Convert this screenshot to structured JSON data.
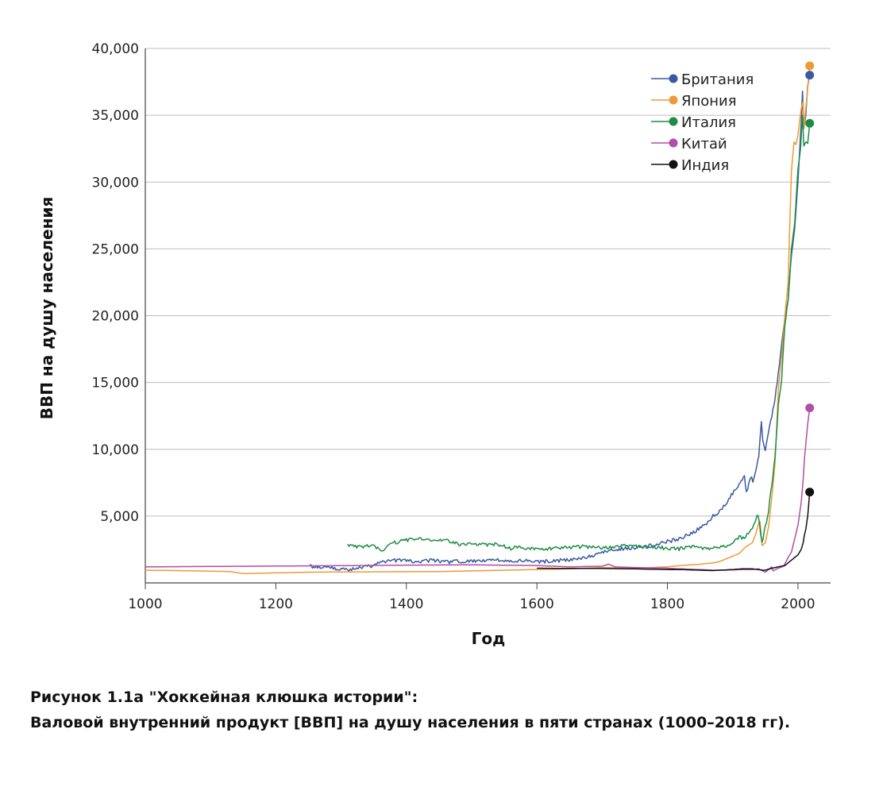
{
  "chart_data": {
    "type": "line",
    "xlabel": "Год",
    "ylabel": "ВВП на душу населения",
    "xlim": [
      1000,
      2050
    ],
    "ylim": [
      0,
      40000
    ],
    "x_ticks": [
      1000,
      1200,
      1400,
      1600,
      1800,
      2000
    ],
    "x_tick_labels": [
      "1000",
      "1200",
      "1400",
      "1600",
      "1800",
      "2000"
    ],
    "y_ticks": [
      5000,
      10000,
      15000,
      20000,
      25000,
      30000,
      35000,
      40000
    ],
    "y_tick_labels": [
      "5,000",
      "10,000",
      "15,000",
      "20,000",
      "25,000",
      "30,000",
      "35,000",
      "40,000"
    ],
    "grid": true,
    "legend_position": "top-right",
    "series": [
      {
        "name": "Британия",
        "color": "#3a5aa0",
        "endpoint": [
          2018,
          38000
        ],
        "points": [
          [
            1252,
            1250
          ],
          [
            1270,
            1200
          ],
          [
            1290,
            1100
          ],
          [
            1310,
            1000
          ],
          [
            1330,
            1100
          ],
          [
            1348,
            1300
          ],
          [
            1360,
            1500
          ],
          [
            1380,
            1700
          ],
          [
            1400,
            1650
          ],
          [
            1420,
            1600
          ],
          [
            1440,
            1700
          ],
          [
            1460,
            1550
          ],
          [
            1480,
            1600
          ],
          [
            1500,
            1600
          ],
          [
            1520,
            1700
          ],
          [
            1540,
            1750
          ],
          [
            1560,
            1600
          ],
          [
            1580,
            1650
          ],
          [
            1600,
            1550
          ],
          [
            1620,
            1650
          ],
          [
            1640,
            1700
          ],
          [
            1660,
            1800
          ],
          [
            1680,
            2000
          ],
          [
            1700,
            2250
          ],
          [
            1720,
            2500
          ],
          [
            1740,
            2600
          ],
          [
            1760,
            2700
          ],
          [
            1780,
            2850
          ],
          [
            1800,
            3100
          ],
          [
            1820,
            3300
          ],
          [
            1840,
            3800
          ],
          [
            1860,
            4400
          ],
          [
            1870,
            5000
          ],
          [
            1880,
            5400
          ],
          [
            1890,
            6000
          ],
          [
            1900,
            6700
          ],
          [
            1910,
            7300
          ],
          [
            1913,
            7700
          ],
          [
            1918,
            7900
          ],
          [
            1921,
            6800
          ],
          [
            1929,
            8000
          ],
          [
            1931,
            7600
          ],
          [
            1937,
            8700
          ],
          [
            1940,
            9500
          ],
          [
            1944,
            12200
          ],
          [
            1946,
            10600
          ],
          [
            1950,
            10000
          ],
          [
            1955,
            11300
          ],
          [
            1960,
            12500
          ],
          [
            1965,
            13900
          ],
          [
            1970,
            15700
          ],
          [
            1975,
            17800
          ],
          [
            1980,
            19700
          ],
          [
            1985,
            21200
          ],
          [
            1990,
            24500
          ],
          [
            1995,
            26500
          ],
          [
            2000,
            30000
          ],
          [
            2005,
            34400
          ],
          [
            2007,
            36800
          ],
          [
            2009,
            34000
          ],
          [
            2012,
            35000
          ],
          [
            2015,
            37200
          ],
          [
            2018,
            38000
          ]
        ]
      },
      {
        "name": "Япония",
        "color": "#ee9a35",
        "endpoint": [
          2018,
          38700
        ],
        "points": [
          [
            1000,
            950
          ],
          [
            1050,
            920
          ],
          [
            1100,
            880
          ],
          [
            1130,
            850
          ],
          [
            1150,
            700
          ],
          [
            1200,
            750
          ],
          [
            1250,
            800
          ],
          [
            1300,
            820
          ],
          [
            1350,
            830
          ],
          [
            1400,
            840
          ],
          [
            1450,
            850
          ],
          [
            1500,
            900
          ],
          [
            1550,
            950
          ],
          [
            1600,
            1000
          ],
          [
            1650,
            1050
          ],
          [
            1700,
            1150
          ],
          [
            1750,
            1100
          ],
          [
            1800,
            1200
          ],
          [
            1820,
            1300
          ],
          [
            1850,
            1400
          ],
          [
            1870,
            1500
          ],
          [
            1880,
            1600
          ],
          [
            1890,
            1800
          ],
          [
            1900,
            2000
          ],
          [
            1910,
            2200
          ],
          [
            1920,
            2700
          ],
          [
            1930,
            3000
          ],
          [
            1935,
            3600
          ],
          [
            1940,
            4500
          ],
          [
            1942,
            4600
          ],
          [
            1945,
            2800
          ],
          [
            1950,
            3000
          ],
          [
            1955,
            4200
          ],
          [
            1960,
            6400
          ],
          [
            1965,
            9000
          ],
          [
            1970,
            14500
          ],
          [
            1975,
            17000
          ],
          [
            1980,
            20000
          ],
          [
            1985,
            22500
          ],
          [
            1990,
            30800
          ],
          [
            1994,
            33000
          ],
          [
            1997,
            32800
          ],
          [
            2000,
            33500
          ],
          [
            2005,
            35500
          ],
          [
            2008,
            36000
          ],
          [
            2009,
            34000
          ],
          [
            2012,
            35500
          ],
          [
            2015,
            37000
          ],
          [
            2018,
            38700
          ]
        ]
      },
      {
        "name": "Италия",
        "color": "#1e8c45",
        "endpoint": [
          2018,
          34400
        ],
        "points": [
          [
            1310,
            2800
          ],
          [
            1330,
            2700
          ],
          [
            1348,
            2850
          ],
          [
            1360,
            2400
          ],
          [
            1380,
            3000
          ],
          [
            1400,
            3200
          ],
          [
            1420,
            3300
          ],
          [
            1440,
            3100
          ],
          [
            1460,
            3200
          ],
          [
            1480,
            2900
          ],
          [
            1500,
            3000
          ],
          [
            1520,
            2850
          ],
          [
            1540,
            2900
          ],
          [
            1560,
            2600
          ],
          [
            1580,
            2650
          ],
          [
            1600,
            2500
          ],
          [
            1620,
            2550
          ],
          [
            1640,
            2600
          ],
          [
            1660,
            2700
          ],
          [
            1680,
            2700
          ],
          [
            1700,
            2600
          ],
          [
            1720,
            2700
          ],
          [
            1740,
            2800
          ],
          [
            1760,
            2700
          ],
          [
            1780,
            2650
          ],
          [
            1800,
            2600
          ],
          [
            1820,
            2550
          ],
          [
            1840,
            2700
          ],
          [
            1860,
            2600
          ],
          [
            1880,
            2600
          ],
          [
            1900,
            3000
          ],
          [
            1910,
            3400
          ],
          [
            1920,
            3400
          ],
          [
            1930,
            4200
          ],
          [
            1939,
            5100
          ],
          [
            1943,
            3700
          ],
          [
            1945,
            3000
          ],
          [
            1950,
            4200
          ],
          [
            1955,
            5400
          ],
          [
            1960,
            7400
          ],
          [
            1965,
            9500
          ],
          [
            1970,
            13300
          ],
          [
            1975,
            15300
          ],
          [
            1980,
            19400
          ],
          [
            1985,
            21200
          ],
          [
            1990,
            25000
          ],
          [
            1995,
            26900
          ],
          [
            2000,
            30900
          ],
          [
            2004,
            32500
          ],
          [
            2007,
            35000
          ],
          [
            2009,
            32700
          ],
          [
            2012,
            33000
          ],
          [
            2015,
            32900
          ],
          [
            2018,
            34400
          ]
        ]
      },
      {
        "name": "Китай",
        "color": "#b04ea8",
        "endpoint": [
          2018,
          13100
        ],
        "points": [
          [
            1000,
            1200
          ],
          [
            1100,
            1230
          ],
          [
            1200,
            1260
          ],
          [
            1300,
            1290
          ],
          [
            1400,
            1330
          ],
          [
            1500,
            1350
          ],
          [
            1600,
            1300
          ],
          [
            1650,
            1200
          ],
          [
            1700,
            1250
          ],
          [
            1710,
            1400
          ],
          [
            1720,
            1200
          ],
          [
            1750,
            1150
          ],
          [
            1800,
            1100
          ],
          [
            1820,
            1050
          ],
          [
            1850,
            1000
          ],
          [
            1870,
            950
          ],
          [
            1890,
            950
          ],
          [
            1913,
            1000
          ],
          [
            1930,
            1000
          ],
          [
            1940,
            1050
          ],
          [
            1950,
            800
          ],
          [
            1955,
            1000
          ],
          [
            1960,
            1200
          ],
          [
            1962,
            900
          ],
          [
            1970,
            1100
          ],
          [
            1978,
            1250
          ],
          [
            1985,
            1900
          ],
          [
            1990,
            2300
          ],
          [
            1995,
            3300
          ],
          [
            2000,
            4300
          ],
          [
            2005,
            6000
          ],
          [
            2008,
            7700
          ],
          [
            2010,
            9300
          ],
          [
            2013,
            10900
          ],
          [
            2015,
            11900
          ],
          [
            2018,
            13100
          ]
        ]
      },
      {
        "name": "Индия",
        "color": "#111111",
        "endpoint": [
          2018,
          6800
        ],
        "points": [
          [
            1600,
            1100
          ],
          [
            1650,
            1080
          ],
          [
            1700,
            1080
          ],
          [
            1750,
            1050
          ],
          [
            1800,
            1000
          ],
          [
            1820,
            1000
          ],
          [
            1850,
            950
          ],
          [
            1870,
            920
          ],
          [
            1880,
            950
          ],
          [
            1900,
            1000
          ],
          [
            1913,
            1050
          ],
          [
            1930,
            1050
          ],
          [
            1947,
            950
          ],
          [
            1950,
            950
          ],
          [
            1960,
            1100
          ],
          [
            1970,
            1200
          ],
          [
            1980,
            1300
          ],
          [
            1990,
            1700
          ],
          [
            1995,
            1900
          ],
          [
            2000,
            2100
          ],
          [
            2005,
            2500
          ],
          [
            2008,
            3000
          ],
          [
            2010,
            3600
          ],
          [
            2012,
            4000
          ],
          [
            2015,
            5000
          ],
          [
            2018,
            6800
          ]
        ]
      }
    ]
  },
  "caption": {
    "line1": "Рисунок 1.1а \"Хоккейная клюшка истории\":",
    "line2": "Валовой внутренний продукт [ВВП] на душу населения в пяти странах (1000–2018 гг)."
  }
}
